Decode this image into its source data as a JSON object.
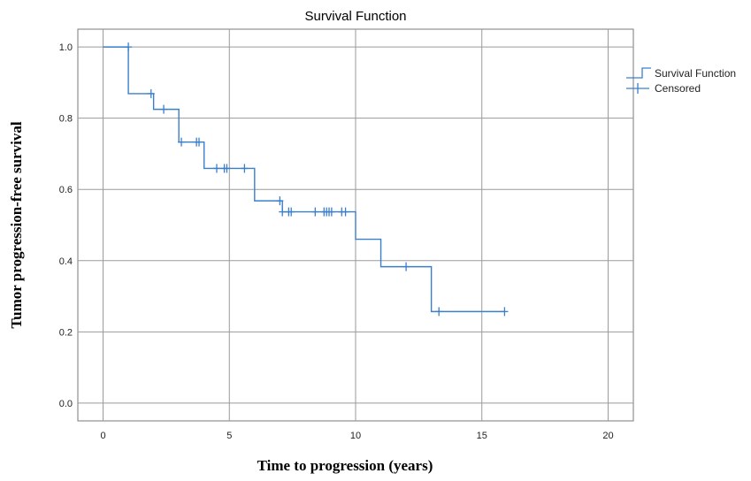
{
  "chart_data": {
    "type": "line",
    "title": "Survival Function",
    "xlabel": "Time to progression (years)",
    "ylabel": "Tumor progression-free survival",
    "xlim": [
      -1,
      21
    ],
    "ylim": [
      -0.05,
      1.05
    ],
    "xticks": [
      0,
      5,
      10,
      15,
      20
    ],
    "yticks": [
      0.0,
      0.2,
      0.4,
      0.6,
      0.8,
      1.0
    ],
    "xtick_labels": [
      "0",
      "5",
      "10",
      "15",
      "20"
    ],
    "ytick_labels": [
      "0.0",
      "0.2",
      "0.4",
      "0.6",
      "0.8",
      "1.0"
    ],
    "grid": true,
    "legend_position": "top-right",
    "line_color": "#3a7fcb",
    "series": [
      {
        "name": "Survival Function",
        "kind": "step",
        "x": [
          0,
          1.0,
          2.0,
          3.0,
          4.0,
          6.0,
          7.1,
          10.0,
          11.0,
          13.0,
          15.9
        ],
        "y": [
          1.0,
          0.869,
          0.825,
          0.733,
          0.659,
          0.568,
          0.537,
          0.46,
          0.383,
          0.257,
          0.257
        ]
      },
      {
        "name": "Censored",
        "kind": "marker",
        "x": [
          1.0,
          1.9,
          2.4,
          3.1,
          3.7,
          3.8,
          4.5,
          4.8,
          4.9,
          5.6,
          7.0,
          7.1,
          7.35,
          7.45,
          8.4,
          8.75,
          8.85,
          8.95,
          9.05,
          9.45,
          9.6,
          12.0,
          13.3,
          15.9
        ],
        "y": [
          1.0,
          0.869,
          0.825,
          0.733,
          0.733,
          0.733,
          0.659,
          0.659,
          0.659,
          0.659,
          0.568,
          0.537,
          0.537,
          0.537,
          0.537,
          0.537,
          0.537,
          0.537,
          0.537,
          0.537,
          0.537,
          0.383,
          0.257,
          0.257
        ]
      }
    ],
    "legend": {
      "entries": [
        "Survival Function",
        "Censored"
      ]
    }
  }
}
